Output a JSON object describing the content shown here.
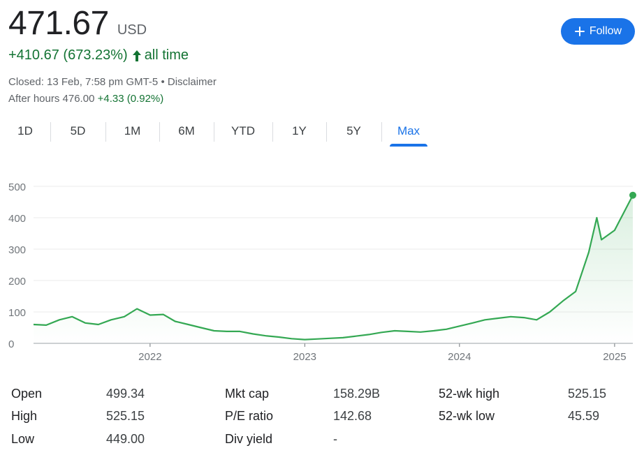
{
  "header": {
    "price": "471.67",
    "currency": "USD",
    "change": "+410.67 (673.23%)",
    "change_period": "all time",
    "closed_text": "Closed: 13 Feb, 7:58 pm GMT-5",
    "disclaimer": "Disclaimer",
    "after_hours_label": "After hours 476.00",
    "after_hours_change": "+4.33 (0.92%)",
    "follow_label": "Follow"
  },
  "colors": {
    "accent": "#1a73e8",
    "positive": "#137333",
    "line": "#34a853"
  },
  "tabs": [
    {
      "label": "1D",
      "active": false
    },
    {
      "label": "5D",
      "active": false
    },
    {
      "label": "1M",
      "active": false
    },
    {
      "label": "6M",
      "active": false
    },
    {
      "label": "YTD",
      "active": false
    },
    {
      "label": "1Y",
      "active": false
    },
    {
      "label": "5Y",
      "active": false
    },
    {
      "label": "Max",
      "active": true
    }
  ],
  "chart_data": {
    "type": "area",
    "title": "",
    "xlabel": "",
    "ylabel": "",
    "ylim": [
      0,
      500
    ],
    "yticks": [
      0,
      100,
      200,
      300,
      400,
      500
    ],
    "xticks": [
      "2022",
      "2023",
      "2024",
      "2025"
    ],
    "grid": true,
    "x": [
      "2021-04",
      "2021-05",
      "2021-06",
      "2021-07",
      "2021-08",
      "2021-09",
      "2021-10",
      "2021-11",
      "2021-12",
      "2022-01",
      "2022-02",
      "2022-03",
      "2022-04",
      "2022-05",
      "2022-06",
      "2022-07",
      "2022-08",
      "2022-09",
      "2022-10",
      "2022-11",
      "2022-12",
      "2023-01",
      "2023-02",
      "2023-03",
      "2023-04",
      "2023-05",
      "2023-06",
      "2023-07",
      "2023-08",
      "2023-09",
      "2023-10",
      "2023-11",
      "2023-12",
      "2024-01",
      "2024-02",
      "2024-03",
      "2024-04",
      "2024-05",
      "2024-06",
      "2024-07",
      "2024-08",
      "2024-09",
      "2024-10",
      "2024-11",
      "2024-11-20",
      "2024-12",
      "2025-01",
      "2025-02-13"
    ],
    "series": [
      {
        "values": [
          60,
          58,
          75,
          85,
          65,
          60,
          75,
          85,
          110,
          90,
          92,
          70,
          60,
          50,
          40,
          38,
          38,
          30,
          24,
          20,
          15,
          12,
          14,
          16,
          18,
          23,
          28,
          35,
          40,
          38,
          36,
          40,
          45,
          55,
          65,
          75,
          80,
          85,
          82,
          75,
          100,
          135,
          165,
          290,
          400,
          330,
          360,
          471.67
        ]
      }
    ]
  },
  "stats": [
    {
      "label": "Open",
      "value": "499.34"
    },
    {
      "label": "High",
      "value": "525.15"
    },
    {
      "label": "Low",
      "value": "449.00"
    },
    {
      "label": "Mkt cap",
      "value": "158.29B"
    },
    {
      "label": "P/E ratio",
      "value": "142.68"
    },
    {
      "label": "Div yield",
      "value": "-"
    },
    {
      "label": "52-wk high",
      "value": "525.15"
    },
    {
      "label": "52-wk low",
      "value": "45.59"
    }
  ]
}
